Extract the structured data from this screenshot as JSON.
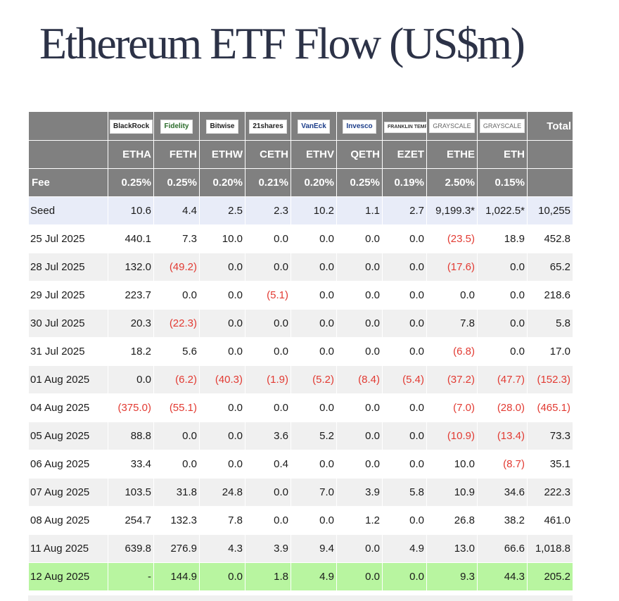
{
  "title": "Ethereum ETF Flow (US$m)",
  "colors": {
    "header_bg": "#808080",
    "negative": "#e23a32",
    "latest_row_bg": "#b8f5a0",
    "seed_row_bg": "#e8ecf8"
  },
  "chart_data": {
    "type": "table",
    "title": "Ethereum ETF Flow (US$m)",
    "issuers": [
      "BlackRock",
      "Fidelity",
      "Bitwise",
      "21shares",
      "VanEck",
      "Invesco",
      "FRANKLIN TEMPLETON",
      "GRAYSCALE",
      "GRAYSCALE"
    ],
    "total_label": "Total",
    "tickers": [
      "ETHA",
      "FETH",
      "ETHW",
      "CETH",
      "ETHV",
      "QETH",
      "EZET",
      "ETHE",
      "ETH"
    ],
    "fee_label": "Fee",
    "fees": [
      "0.25%",
      "0.25%",
      "0.20%",
      "0.21%",
      "0.20%",
      "0.25%",
      "0.19%",
      "2.50%",
      "0.15%"
    ],
    "rows": [
      {
        "label": "Seed",
        "values": [
          "10.6",
          "4.4",
          "2.5",
          "2.3",
          "10.2",
          "1.1",
          "2.7",
          "9,199.3*",
          "1,022.5*"
        ],
        "total": "10,255"
      },
      {
        "label": "25 Jul 2025",
        "values": [
          "440.1",
          "7.3",
          "10.0",
          "0.0",
          "0.0",
          "0.0",
          "0.0",
          "(23.5)",
          "18.9"
        ],
        "total": "452.8"
      },
      {
        "label": "28 Jul 2025",
        "values": [
          "132.0",
          "(49.2)",
          "0.0",
          "0.0",
          "0.0",
          "0.0",
          "0.0",
          "(17.6)",
          "0.0"
        ],
        "total": "65.2"
      },
      {
        "label": "29 Jul 2025",
        "values": [
          "223.7",
          "0.0",
          "0.0",
          "(5.1)",
          "0.0",
          "0.0",
          "0.0",
          "0.0",
          "0.0"
        ],
        "total": "218.6"
      },
      {
        "label": "30 Jul 2025",
        "values": [
          "20.3",
          "(22.3)",
          "0.0",
          "0.0",
          "0.0",
          "0.0",
          "0.0",
          "7.8",
          "0.0"
        ],
        "total": "5.8"
      },
      {
        "label": "31 Jul 2025",
        "values": [
          "18.2",
          "5.6",
          "0.0",
          "0.0",
          "0.0",
          "0.0",
          "0.0",
          "(6.8)",
          "0.0"
        ],
        "total": "17.0"
      },
      {
        "label": "01 Aug 2025",
        "values": [
          "0.0",
          "(6.2)",
          "(40.3)",
          "(1.9)",
          "(5.2)",
          "(8.4)",
          "(5.4)",
          "(37.2)",
          "(47.7)"
        ],
        "total": "(152.3)"
      },
      {
        "label": "04 Aug 2025",
        "values": [
          "(375.0)",
          "(55.1)",
          "0.0",
          "0.0",
          "0.0",
          "0.0",
          "0.0",
          "(7.0)",
          "(28.0)"
        ],
        "total": "(465.1)"
      },
      {
        "label": "05 Aug 2025",
        "values": [
          "88.8",
          "0.0",
          "0.0",
          "3.6",
          "5.2",
          "0.0",
          "0.0",
          "(10.9)",
          "(13.4)"
        ],
        "total": "73.3"
      },
      {
        "label": "06 Aug 2025",
        "values": [
          "33.4",
          "0.0",
          "0.0",
          "0.4",
          "0.0",
          "0.0",
          "0.0",
          "10.0",
          "(8.7)"
        ],
        "total": "35.1"
      },
      {
        "label": "07 Aug 2025",
        "values": [
          "103.5",
          "31.8",
          "24.8",
          "0.0",
          "7.0",
          "3.9",
          "5.8",
          "10.9",
          "34.6"
        ],
        "total": "222.3"
      },
      {
        "label": "08 Aug 2025",
        "values": [
          "254.7",
          "132.3",
          "7.8",
          "0.0",
          "0.0",
          "1.2",
          "0.0",
          "26.8",
          "38.2"
        ],
        "total": "461.0"
      },
      {
        "label": "11 Aug 2025",
        "values": [
          "639.8",
          "276.9",
          "4.3",
          "3.9",
          "9.4",
          "0.0",
          "4.9",
          "13.0",
          "66.6"
        ],
        "total": "1,018.8"
      },
      {
        "label": "12 Aug 2025",
        "values": [
          "-",
          "144.9",
          "0.0",
          "1.8",
          "4.9",
          "0.0",
          "0.0",
          "9.3",
          "44.3"
        ],
        "total": "205.2"
      }
    ]
  }
}
